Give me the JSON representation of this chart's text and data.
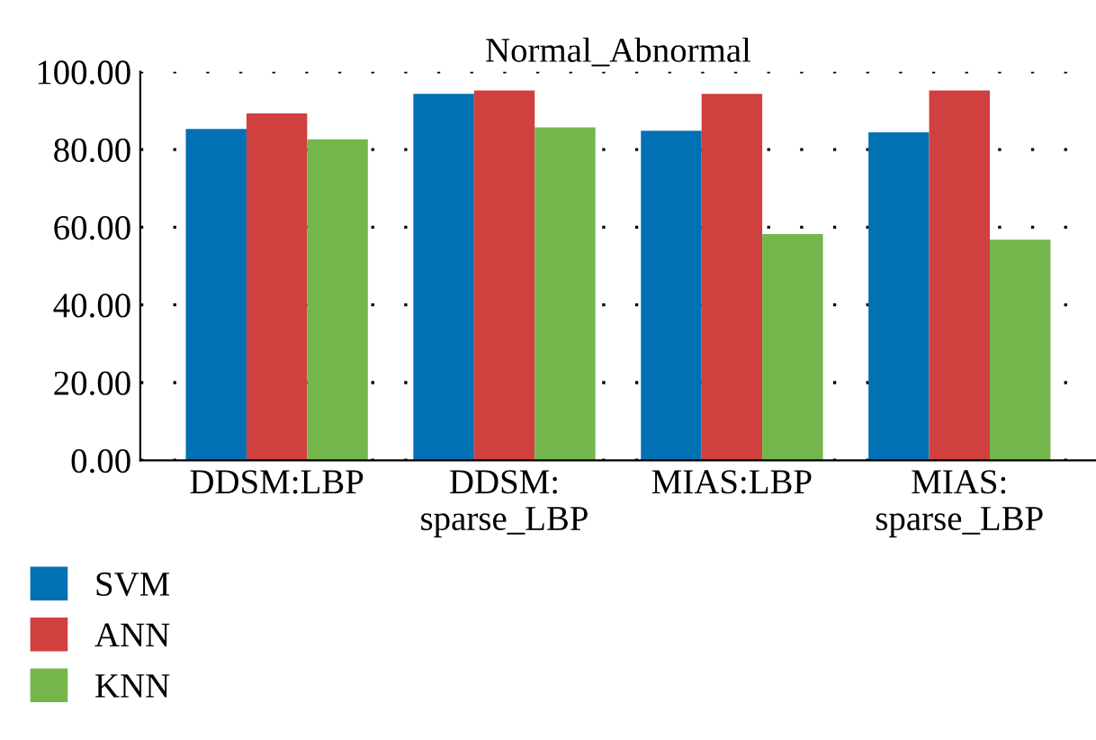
{
  "chart_data": {
    "type": "bar",
    "title": "Normal_Abnormal",
    "categories": [
      "DDSM:LBP",
      "DDSM:\nsparse_LBP",
      "MIAS:LBP",
      "MIAS:\nsparse_LBP"
    ],
    "series": [
      {
        "name": "SVM",
        "color": "#0271b4",
        "values": [
          85.3,
          94.3,
          84.8,
          84.4
        ]
      },
      {
        "name": "ANN",
        "color": "#d0403e",
        "values": [
          89.3,
          95.2,
          94.3,
          95.2
        ]
      },
      {
        "name": "KNN",
        "color": "#74b64b",
        "values": [
          82.6,
          85.7,
          58.2,
          56.8
        ]
      }
    ],
    "ylim": [
      0,
      100
    ],
    "yticks": [
      {
        "value": 0,
        "label": "0.00"
      },
      {
        "value": 20,
        "label": "20.00"
      },
      {
        "value": 40,
        "label": "40.00"
      },
      {
        "value": 60,
        "label": "60.00"
      },
      {
        "value": 80,
        "label": "80.00"
      },
      {
        "value": 100,
        "label": "100.00"
      }
    ],
    "grid": "y",
    "legend": "bottom left"
  }
}
